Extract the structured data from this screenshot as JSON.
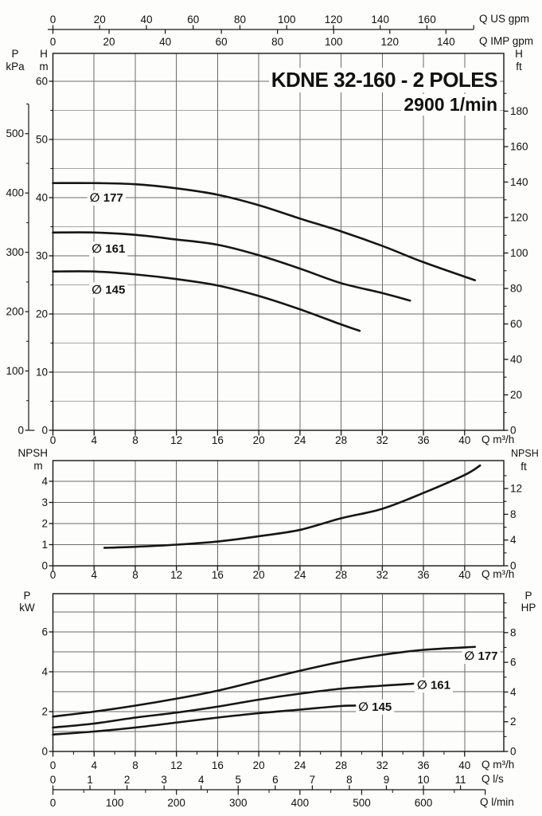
{
  "page": {
    "title": "KDNE 32-160 - 2 POLES",
    "subtitle": "2900 1/min"
  },
  "axis_labels": {
    "q_us": "Q US gpm",
    "q_imp": "Q IMP gpm",
    "q_m3h": "Q m³/h",
    "q_ls": "Q l/s",
    "q_lmin": "Q l/min",
    "p": "P",
    "kpa": "kPa",
    "h": "H",
    "m": "m",
    "ft": "ft",
    "npsh": "NPSH",
    "kw": "kW",
    "hp": "HP"
  },
  "colors": {
    "curve": "#161616",
    "grid_major": "#6b6b6b",
    "grid_minor": "#a6a6a6",
    "frame": "#161616",
    "text": "#111111",
    "background": "#fdfdfb"
  },
  "chart_data": [
    {
      "id": "head",
      "type": "line",
      "title": "KDNE 32-160 - 2 POLES",
      "subtitle": "2900 1/min",
      "x_unit": "Q m³/h",
      "x_ticks": [
        0,
        4,
        8,
        12,
        16,
        20,
        24,
        28,
        32,
        36,
        40
      ],
      "x_grid": [
        4,
        8,
        12,
        16,
        20,
        24,
        28,
        32,
        36,
        40
      ],
      "x_range": [
        0,
        43.8
      ],
      "x_top_axes": [
        {
          "unit": "Q US gpm",
          "side": "above",
          "tick_labels": [
            0,
            20,
            40,
            60,
            80,
            100,
            120,
            140,
            160
          ],
          "extra_ticks": [
            180
          ],
          "m3h_per_unit": 0.22712
        },
        {
          "unit": "Q IMP gpm",
          "side": "below",
          "tick_labels": [
            0,
            20,
            40,
            60,
            80,
            100,
            120,
            140
          ],
          "extra_ticks": [],
          "m3h_per_unit": 0.27276
        }
      ],
      "y_left": {
        "unit": "H m",
        "range": [
          0,
          64.8
        ],
        "tick_labels": [
          0,
          10,
          20,
          30,
          40,
          50,
          60
        ],
        "minor_ticks": [
          5,
          15,
          25,
          35,
          45,
          55
        ]
      },
      "y_left_secondary": {
        "unit": "P kPa",
        "tick_labels": [
          0,
          100,
          200,
          300,
          400,
          500
        ],
        "minor_ticks": [
          50,
          150,
          250,
          350,
          450,
          550
        ],
        "base_per_unit": 0.10199
      },
      "y_right": {
        "unit": "H ft",
        "tick_labels": [
          0,
          20,
          40,
          60,
          80,
          100,
          120,
          140,
          160,
          180
        ],
        "minor_ticks": [
          10,
          30,
          50,
          70,
          90,
          110,
          130,
          150,
          170,
          190
        ],
        "base_per_unit": 0.3048
      },
      "y_grid_major": [
        10,
        20,
        30,
        40,
        50,
        60
      ],
      "y_grid_minor": [
        5,
        15,
        25,
        35,
        45,
        55
      ],
      "series": [
        {
          "name": "177",
          "label": "∅ 177",
          "label_at": {
            "q": 5.2,
            "v": 40
          },
          "points": [
            [
              0,
              42.5
            ],
            [
              4,
              42.5
            ],
            [
              8,
              42.3
            ],
            [
              12,
              41.6
            ],
            [
              16,
              40.5
            ],
            [
              20,
              38.7
            ],
            [
              24,
              36.4
            ],
            [
              28,
              34.2
            ],
            [
              32,
              31.7
            ],
            [
              36,
              28.9
            ],
            [
              41,
              25.8
            ]
          ]
        },
        {
          "name": "161",
          "label": "∅ 161",
          "label_at": {
            "q": 5.4,
            "v": 31.2
          },
          "points": [
            [
              0,
              34
            ],
            [
              4,
              34
            ],
            [
              8,
              33.6
            ],
            [
              12,
              32.8
            ],
            [
              16,
              31.9
            ],
            [
              20,
              30.1
            ],
            [
              24,
              27.8
            ],
            [
              28,
              25.3
            ],
            [
              32,
              23.6
            ],
            [
              34.7,
              22.3
            ]
          ]
        },
        {
          "name": "145",
          "label": "∅ 145",
          "label_at": {
            "q": 5.4,
            "v": 24.2
          },
          "points": [
            [
              0,
              27.3
            ],
            [
              4,
              27.3
            ],
            [
              8,
              26.8
            ],
            [
              12,
              26
            ],
            [
              16,
              24.9
            ],
            [
              20,
              23.1
            ],
            [
              24,
              20.8
            ],
            [
              28,
              18.2
            ],
            [
              29.8,
              17.1
            ]
          ]
        }
      ]
    },
    {
      "id": "npsh",
      "type": "line",
      "x_unit": "Q m³/h",
      "x_ticks": [
        0,
        4,
        8,
        12,
        16,
        20,
        24,
        28,
        32,
        36,
        40
      ],
      "x_grid": [
        4,
        8,
        12,
        16,
        20,
        24,
        28,
        32,
        36,
        40
      ],
      "x_range": [
        0,
        43.8
      ],
      "y_left": {
        "unit": "NPSH m",
        "range": [
          0,
          4.98
        ],
        "tick_labels": [
          0,
          1,
          2,
          3,
          4
        ],
        "minor_ticks": []
      },
      "y_right": {
        "unit": "NPSH ft",
        "tick_labels": [
          0,
          4,
          8,
          12
        ],
        "minor_ticks": [
          2,
          6,
          10,
          14
        ],
        "base_per_unit": 0.3048
      },
      "y_grid_major": [
        1,
        2,
        3,
        4
      ],
      "y_grid_minor": [],
      "series": [
        {
          "name": "npsh",
          "label": "",
          "points": [
            [
              5,
              0.85
            ],
            [
              8,
              0.9
            ],
            [
              12,
              1.0
            ],
            [
              16,
              1.15
            ],
            [
              20,
              1.4
            ],
            [
              24,
              1.7
            ],
            [
              28,
              2.25
            ],
            [
              32,
              2.7
            ],
            [
              36,
              3.45
            ],
            [
              40,
              4.3
            ],
            [
              41.5,
              4.75
            ]
          ]
        }
      ]
    },
    {
      "id": "power",
      "type": "line",
      "x_unit": "Q m³/h",
      "x_ticks": [
        0,
        4,
        8,
        12,
        16,
        20,
        24,
        28,
        32,
        36,
        40
      ],
      "x_grid": [
        4,
        8,
        12,
        16,
        20,
        24,
        28,
        32,
        36,
        40
      ],
      "x_minor_tick_step": 2,
      "x_range": [
        0,
        43.8
      ],
      "x_bottom_axes": [
        {
          "unit": "Q l/s",
          "tick_labels": [
            0,
            1,
            2,
            3,
            4,
            5,
            6,
            7,
            8,
            9,
            10,
            11
          ],
          "m3h_per_unit": 3.6
        },
        {
          "unit": "Q l/min",
          "tick_labels": [
            0,
            100,
            200,
            300,
            400,
            500,
            600
          ],
          "minor_step": 50,
          "end_tick": 700,
          "m3h_per_unit": 0.06
        }
      ],
      "y_left": {
        "unit": "P kW",
        "range": [
          0,
          7.92
        ],
        "tick_labels": [
          0,
          2,
          4,
          6
        ],
        "minor_ticks": []
      },
      "y_right": {
        "unit": "P HP",
        "tick_labels": [
          0,
          2,
          4,
          6,
          8
        ],
        "minor_ticks": [
          1,
          3,
          5,
          7,
          9,
          10
        ],
        "base_per_unit": 0.7457
      },
      "y_grid_major": [
        1,
        2,
        3,
        4,
        5,
        6,
        7
      ],
      "y_grid_minor": [],
      "series": [
        {
          "name": "177",
          "label": "∅ 177",
          "label_at": {
            "q": 41.6,
            "v": 4.8
          },
          "points": [
            [
              0,
              1.75
            ],
            [
              4,
              2.0
            ],
            [
              8,
              2.3
            ],
            [
              12,
              2.65
            ],
            [
              16,
              3.05
            ],
            [
              20,
              3.55
            ],
            [
              24,
              4.05
            ],
            [
              28,
              4.5
            ],
            [
              32,
              4.85
            ],
            [
              36,
              5.1
            ],
            [
              41,
              5.25
            ]
          ]
        },
        {
          "name": "161",
          "label": "∅ 161",
          "label_at": {
            "q": 37,
            "v": 3.35
          },
          "points": [
            [
              0,
              1.2
            ],
            [
              4,
              1.4
            ],
            [
              8,
              1.7
            ],
            [
              12,
              1.95
            ],
            [
              16,
              2.25
            ],
            [
              20,
              2.6
            ],
            [
              24,
              2.9
            ],
            [
              28,
              3.15
            ],
            [
              32,
              3.3
            ],
            [
              35,
              3.4
            ]
          ]
        },
        {
          "name": "145",
          "label": "∅ 145",
          "label_at": {
            "q": 31.3,
            "v": 2.25
          },
          "points": [
            [
              0,
              0.85
            ],
            [
              4,
              1.0
            ],
            [
              8,
              1.2
            ],
            [
              12,
              1.45
            ],
            [
              16,
              1.7
            ],
            [
              20,
              1.92
            ],
            [
              24,
              2.1
            ],
            [
              28,
              2.28
            ],
            [
              30,
              2.3
            ]
          ]
        }
      ]
    }
  ]
}
